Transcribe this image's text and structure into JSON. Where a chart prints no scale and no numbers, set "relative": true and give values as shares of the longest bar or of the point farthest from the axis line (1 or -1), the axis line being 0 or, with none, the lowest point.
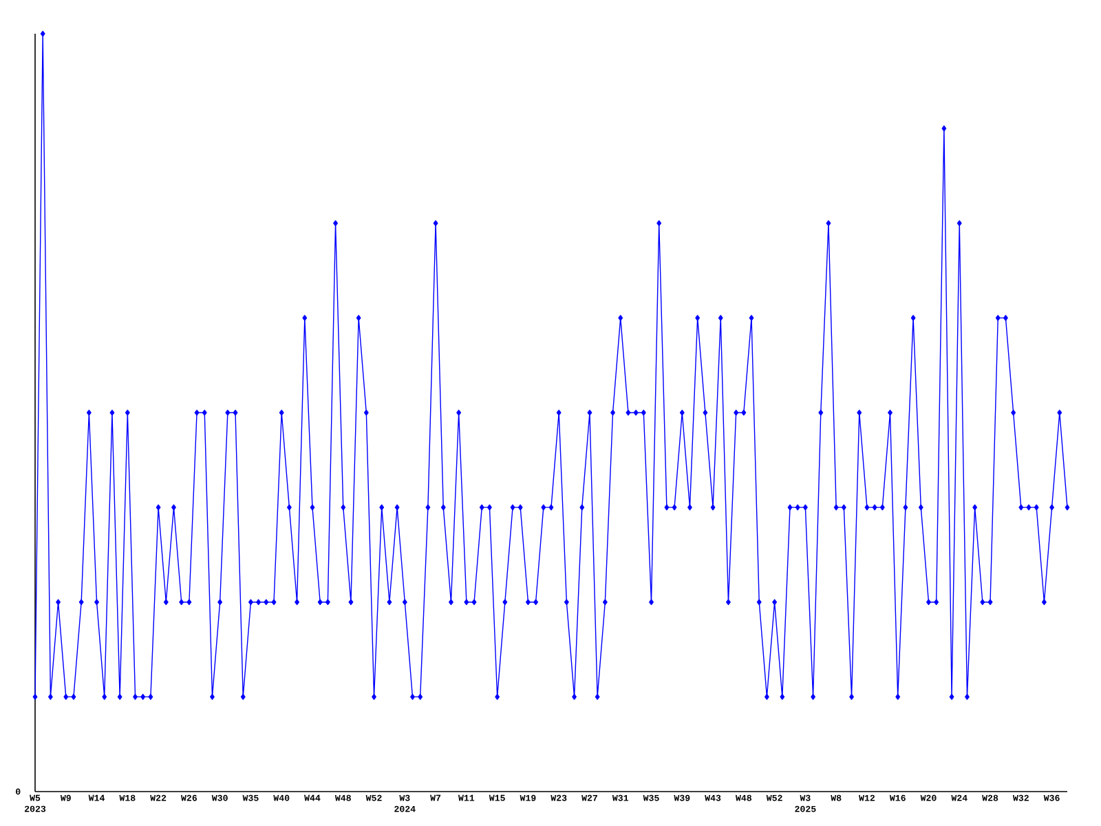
{
  "chart_data": {
    "type": "line",
    "relative": true,
    "color": "#0000ff",
    "marker": "diamond",
    "line_style": "solid",
    "grid": false,
    "annotations": [
      "0"
    ],
    "categories": [
      "W5 2023",
      null,
      null,
      null,
      "W9",
      null,
      null,
      null,
      "W14",
      null,
      null,
      null,
      "W18",
      null,
      null,
      null,
      "W22",
      null,
      null,
      null,
      "W26",
      null,
      null,
      null,
      "W30",
      null,
      null,
      null,
      "W35",
      null,
      null,
      null,
      "W40",
      null,
      null,
      null,
      "W44",
      null,
      null,
      null,
      "W48",
      null,
      null,
      null,
      "W52",
      null,
      null,
      null,
      "W3 2024",
      null,
      null,
      null,
      "W7",
      null,
      null,
      null,
      "W11",
      null,
      null,
      null,
      "W15",
      null,
      null,
      null,
      "W19",
      null,
      null,
      null,
      "W23",
      null,
      null,
      null,
      "W27",
      null,
      null,
      null,
      "W31",
      null,
      null,
      null,
      "W35",
      null,
      null,
      null,
      "W39",
      null,
      null,
      null,
      "W43",
      null,
      null,
      null,
      "W48",
      null,
      null,
      null,
      "W52",
      null,
      null,
      null,
      "W3 2025",
      null,
      null,
      null,
      "W8",
      null,
      null,
      null,
      "W12",
      null,
      null,
      null,
      "W16",
      null,
      null,
      null,
      "W20",
      null,
      null,
      null,
      "W24",
      null,
      null,
      null,
      "W28",
      null,
      null,
      null,
      "W32",
      null,
      null,
      null,
      "W36",
      null,
      null
    ],
    "values": [
      0.125,
      1,
      0.125,
      0.25,
      0.125,
      0.125,
      0.25,
      0.5,
      0.25,
      0.125,
      0.5,
      0.125,
      0.5,
      0.125,
      0.125,
      0.125,
      0.375,
      0.25,
      0.375,
      0.25,
      0.25,
      0.5,
      0.5,
      0.125,
      0.25,
      0.5,
      0.5,
      0.125,
      0.25,
      0.25,
      0.25,
      0.25,
      0.5,
      0.375,
      0.25,
      0.625,
      0.375,
      0.25,
      0.25,
      0.75,
      0.375,
      0.25,
      0.625,
      0.5,
      0.125,
      0.375,
      0.25,
      0.375,
      0.25,
      0.125,
      0.125,
      0.375,
      0.75,
      0.375,
      0.25,
      0.5,
      0.25,
      0.25,
      0.375,
      0.375,
      0.125,
      0.25,
      0.375,
      0.375,
      0.25,
      0.25,
      0.375,
      0.375,
      0.5,
      0.25,
      0.125,
      0.375,
      0.5,
      0.125,
      0.25,
      0.5,
      0.625,
      0.5,
      0.5,
      0.5,
      0.25,
      0.75,
      0.375,
      0.375,
      0.5,
      0.375,
      0.625,
      0.5,
      0.375,
      0.625,
      0.25,
      0.5,
      0.5,
      0.625,
      0.25,
      0.125,
      0.25,
      0.125,
      0.375,
      0.375,
      0.375,
      0.125,
      0.5,
      0.75,
      0.375,
      0.375,
      0.125,
      0.5,
      0.375,
      0.375,
      0.375,
      0.5,
      0.125,
      0.375,
      0.625,
      0.375,
      0.25,
      0.25,
      0.875,
      0.125,
      0.75,
      0.125,
      0.375,
      0.25,
      0.25,
      0.625,
      0.625,
      0.5,
      0.375,
      0.375,
      0.375,
      0.25,
      0.375,
      0.5,
      0.375
    ]
  }
}
